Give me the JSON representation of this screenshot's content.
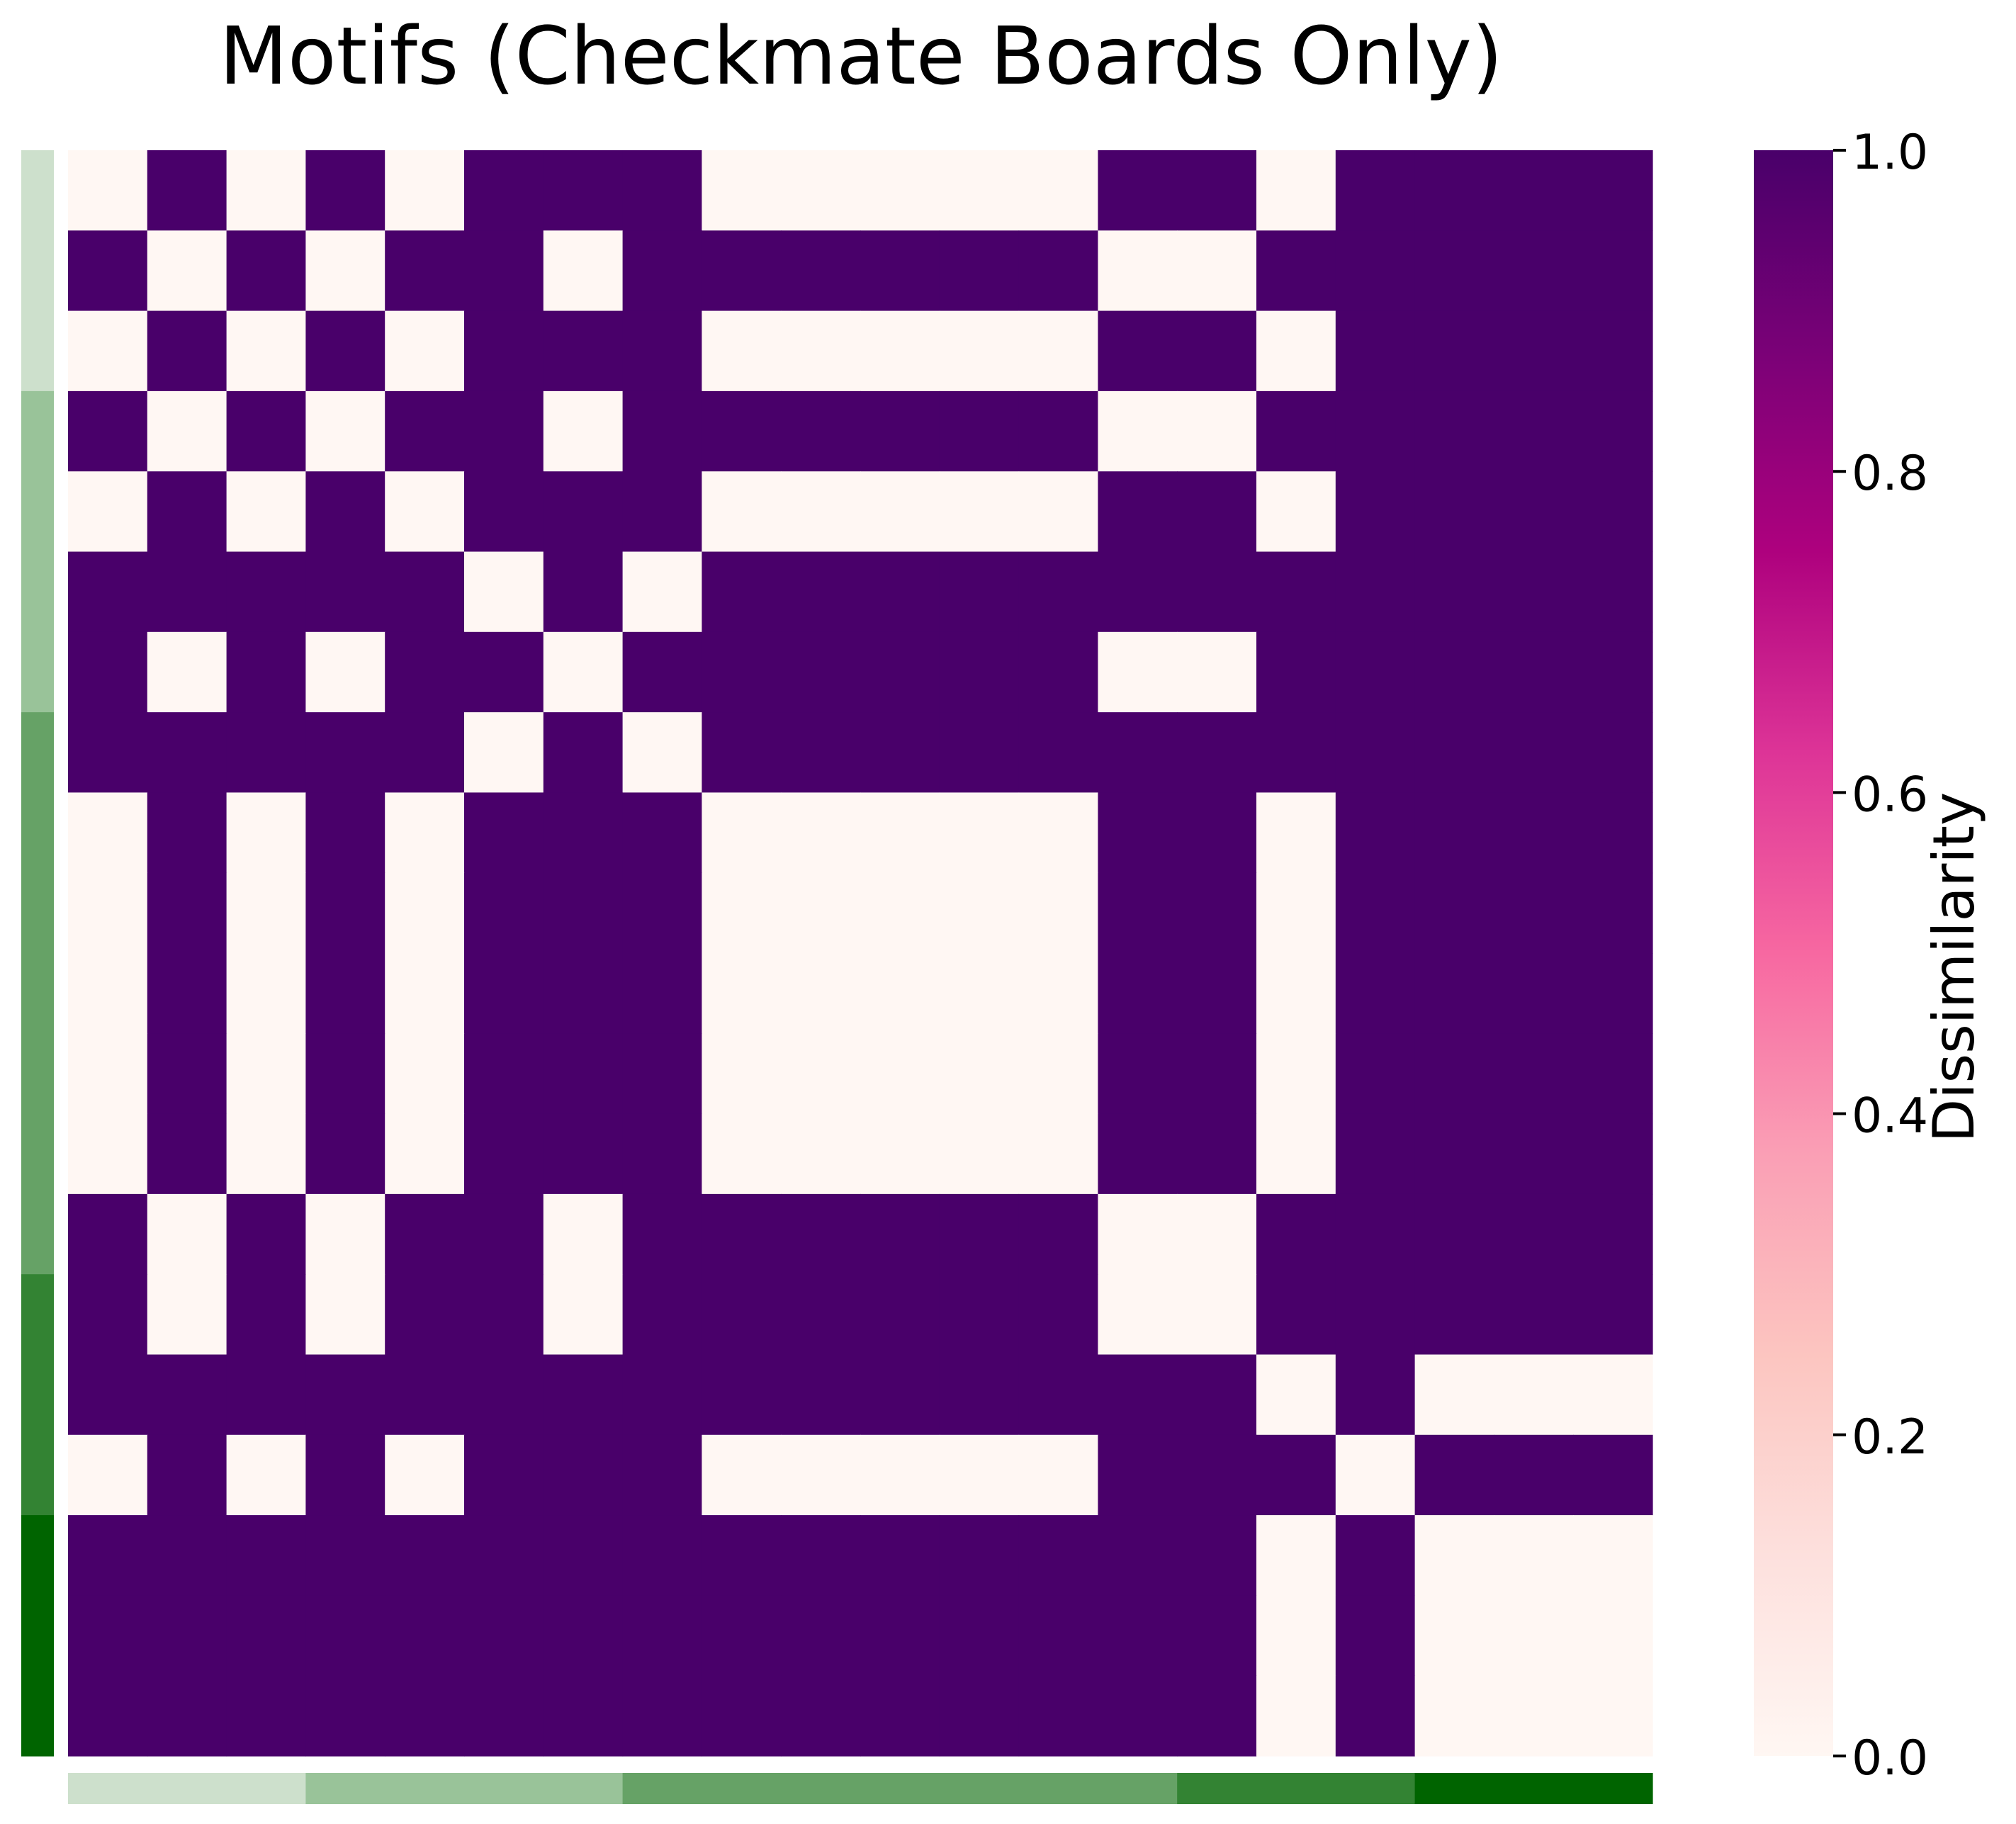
{
  "chart_data": {
    "type": "heatmap",
    "title": "Motifs (Checkmate Boards Only)",
    "colorbar": {
      "label": "Dissimilarity",
      "range": [
        0.0,
        1.0
      ],
      "ticks": [
        "0.0",
        "0.2",
        "0.4",
        "0.6",
        "0.8",
        "1.0"
      ],
      "colormap": [
        "#fff7f3",
        "#fde0dd",
        "#fcc5c0",
        "#fa9fb5",
        "#f768a1",
        "#dd3497",
        "#ae017e",
        "#7a0177",
        "#49006a"
      ]
    },
    "matrix": [
      [
        0,
        1,
        0,
        1,
        0,
        1,
        1,
        1,
        0,
        0,
        0,
        0,
        0,
        1,
        1,
        0,
        1,
        1,
        1,
        1
      ],
      [
        1,
        0,
        1,
        0,
        1,
        1,
        0,
        1,
        1,
        1,
        1,
        1,
        1,
        0,
        0,
        1,
        1,
        1,
        1,
        1
      ],
      [
        0,
        1,
        0,
        1,
        0,
        1,
        1,
        1,
        0,
        0,
        0,
        0,
        0,
        1,
        1,
        0,
        1,
        1,
        1,
        1
      ],
      [
        1,
        0,
        1,
        0,
        1,
        1,
        0,
        1,
        1,
        1,
        1,
        1,
        1,
        0,
        0,
        1,
        1,
        1,
        1,
        1
      ],
      [
        0,
        1,
        0,
        1,
        0,
        1,
        1,
        1,
        0,
        0,
        0,
        0,
        0,
        1,
        1,
        0,
        1,
        1,
        1,
        1
      ],
      [
        1,
        1,
        1,
        1,
        1,
        0,
        1,
        0,
        1,
        1,
        1,
        1,
        1,
        1,
        1,
        1,
        1,
        1,
        1,
        1
      ],
      [
        1,
        0,
        1,
        0,
        1,
        1,
        0,
        1,
        1,
        1,
        1,
        1,
        1,
        0,
        0,
        1,
        1,
        1,
        1,
        1
      ],
      [
        1,
        1,
        1,
        1,
        1,
        0,
        1,
        0,
        1,
        1,
        1,
        1,
        1,
        1,
        1,
        1,
        1,
        1,
        1,
        1
      ],
      [
        0,
        1,
        0,
        1,
        0,
        1,
        1,
        1,
        0,
        0,
        0,
        0,
        0,
        1,
        1,
        0,
        1,
        1,
        1,
        1
      ],
      [
        0,
        1,
        0,
        1,
        0,
        1,
        1,
        1,
        0,
        0,
        0,
        0,
        0,
        1,
        1,
        0,
        1,
        1,
        1,
        1
      ],
      [
        0,
        1,
        0,
        1,
        0,
        1,
        1,
        1,
        0,
        0,
        0,
        0,
        0,
        1,
        1,
        0,
        1,
        1,
        1,
        1
      ],
      [
        0,
        1,
        0,
        1,
        0,
        1,
        1,
        1,
        0,
        0,
        0,
        0,
        0,
        1,
        1,
        0,
        1,
        1,
        1,
        1
      ],
      [
        0,
        1,
        0,
        1,
        0,
        1,
        1,
        1,
        0,
        0,
        0,
        0,
        0,
        1,
        1,
        0,
        1,
        1,
        1,
        1
      ],
      [
        1,
        0,
        1,
        0,
        1,
        1,
        0,
        1,
        1,
        1,
        1,
        1,
        1,
        0,
        0,
        1,
        1,
        1,
        1,
        1
      ],
      [
        1,
        0,
        1,
        0,
        1,
        1,
        0,
        1,
        1,
        1,
        1,
        1,
        1,
        0,
        0,
        1,
        1,
        1,
        1,
        1
      ],
      [
        1,
        1,
        1,
        1,
        1,
        1,
        1,
        1,
        1,
        1,
        1,
        1,
        1,
        1,
        1,
        0,
        1,
        0,
        0,
        0
      ],
      [
        0,
        1,
        0,
        1,
        0,
        1,
        1,
        1,
        0,
        0,
        0,
        0,
        0,
        1,
        1,
        1,
        0,
        1,
        1,
        1
      ],
      [
        1,
        1,
        1,
        1,
        1,
        1,
        1,
        1,
        1,
        1,
        1,
        1,
        1,
        1,
        1,
        0,
        1,
        0,
        0,
        0
      ],
      [
        1,
        1,
        1,
        1,
        1,
        1,
        1,
        1,
        1,
        1,
        1,
        1,
        1,
        1,
        1,
        0,
        1,
        0,
        0,
        0
      ],
      [
        1,
        1,
        1,
        1,
        1,
        1,
        1,
        1,
        1,
        1,
        1,
        1,
        1,
        1,
        1,
        0,
        1,
        0,
        0,
        0
      ]
    ],
    "row_groups": [
      {
        "count": 3,
        "color": "#cde0cc"
      },
      {
        "count": 4,
        "color": "#99c399"
      },
      {
        "count": 7,
        "color": "#66a266"
      },
      {
        "count": 3,
        "color": "#338333"
      },
      {
        "count": 3,
        "color": "#006400"
      }
    ],
    "col_groups": [
      {
        "count": 3,
        "color": "#cde0cc"
      },
      {
        "count": 4,
        "color": "#99c399"
      },
      {
        "count": 7,
        "color": "#66a266"
      },
      {
        "count": 3,
        "color": "#338333"
      },
      {
        "count": 3,
        "color": "#006400"
      }
    ],
    "grid": false
  }
}
